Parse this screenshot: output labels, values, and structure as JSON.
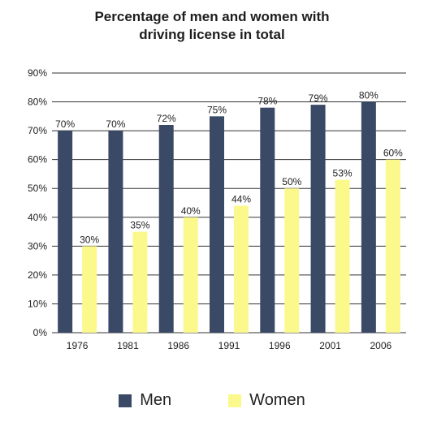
{
  "chart_data": {
    "type": "bar",
    "title_line1": "Percentage of men and women with",
    "title_line2": "driving license in total",
    "xlabel": "",
    "ylabel": "",
    "categories": [
      "1976",
      "1981",
      "1986",
      "1991",
      "1996",
      "2001",
      "2006"
    ],
    "series": [
      {
        "name": "Men",
        "values": [
          70,
          70,
          72,
          75,
          78,
          79,
          80
        ],
        "labels": [
          "70%",
          "70%",
          "72%",
          "75%",
          "78%",
          "79%",
          "80%"
        ],
        "color": "#3a4a66"
      },
      {
        "name": "Women",
        "values": [
          30,
          35,
          40,
          44,
          50,
          53,
          60
        ],
        "labels": [
          "30%",
          "35%",
          "40%",
          "44%",
          "50%",
          "53%",
          "60%"
        ],
        "color": "#fbf88c"
      }
    ],
    "ylim": [
      0,
      90
    ],
    "yticks": [
      "0%",
      "10%",
      "20%",
      "30%",
      "40%",
      "50%",
      "60%",
      "70%",
      "80%",
      "90%"
    ],
    "grid": true,
    "legend_position": "bottom"
  }
}
